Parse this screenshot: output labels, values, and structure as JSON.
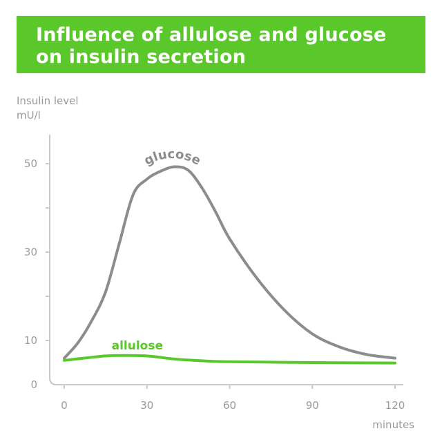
{
  "colors": {
    "banner": "#5ac72a",
    "glucose": "#8c8c8c",
    "allulose": "#5ac72a",
    "axis": "#c8c8c8",
    "tick_text": "#9a9a9a"
  },
  "chart_data": {
    "type": "line",
    "title": "Influence of allulose and glucose on insulin secretion",
    "ylabel_line1": "Insulin level",
    "ylabel_line2": "mU/l",
    "xlabel": "minutes",
    "x_ticks": [
      0,
      30,
      60,
      90,
      120
    ],
    "y_ticks": [
      10,
      30,
      50
    ],
    "y_minor_ticks": [
      20,
      40
    ],
    "y_zero_label": "0",
    "xlim": [
      -5,
      123
    ],
    "ylim": [
      0,
      57
    ],
    "grid": false,
    "series": [
      {
        "name": "glucose",
        "color": "#8c8c8c",
        "x": [
          0,
          5,
          10,
          15,
          20,
          25,
          30,
          35,
          40,
          45,
          50,
          55,
          60,
          70,
          80,
          90,
          100,
          110,
          120
        ],
        "y": [
          6,
          9.5,
          14.5,
          21,
          32,
          43,
          46.5,
          48.3,
          49.3,
          48.5,
          44.5,
          39,
          33,
          24,
          16.8,
          11.5,
          8.5,
          6.8,
          6
        ]
      },
      {
        "name": "allulose",
        "color": "#5ac72a",
        "x": [
          0,
          10,
          15,
          20,
          30,
          40,
          50,
          60,
          90,
          120
        ],
        "y": [
          5.5,
          6.2,
          6.5,
          6.6,
          6.5,
          5.8,
          5.4,
          5.2,
          5.0,
          4.9
        ]
      }
    ]
  }
}
